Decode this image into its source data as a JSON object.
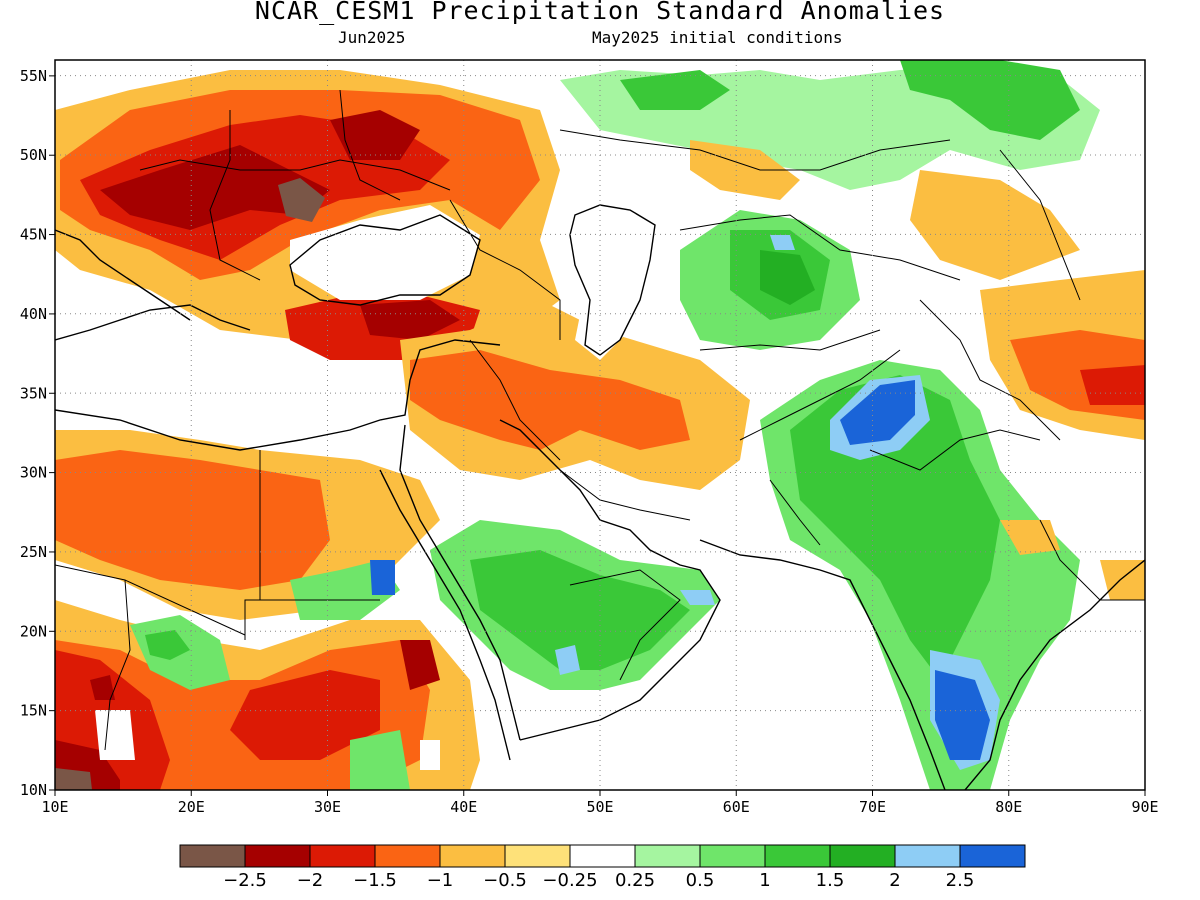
{
  "title": "NCAR_CESM1 Precipitation Standard Anomalies",
  "subtitle_left": "Jun2025",
  "subtitle_right": "May2025 initial conditions",
  "map": {
    "lon_range": [
      10,
      90
    ],
    "lat_range": [
      10,
      56
    ],
    "x_ticks": [
      "10E",
      "20E",
      "30E",
      "40E",
      "50E",
      "60E",
      "70E",
      "80E",
      "90E"
    ],
    "y_ticks": [
      "10N",
      "15N",
      "20N",
      "25N",
      "30N",
      "35N",
      "40N",
      "45N",
      "50N",
      "55N"
    ],
    "grid": "dotted"
  },
  "colorbar": {
    "colors": [
      "#7a5647",
      "#a50000",
      "#dc1a05",
      "#fa6414",
      "#fbbe41",
      "#fee179",
      "#ffffff",
      "#a5f5a0",
      "#6fe56a",
      "#3ac838",
      "#23af23",
      "#8ecdf5",
      "#1a64d8"
    ],
    "labels": [
      "−2.5",
      "−2",
      "−1.5",
      "−1",
      "−0.5",
      "−0.25",
      "0.25",
      "0.5",
      "1",
      "1.5",
      "2",
      "2.5"
    ]
  }
}
